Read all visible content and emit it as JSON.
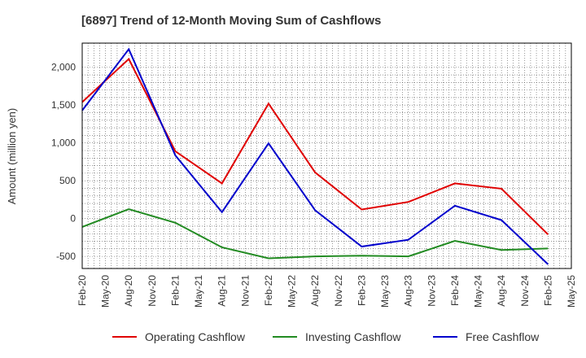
{
  "chart_data": {
    "type": "line",
    "title": "[6897]  Trend of 12-Month Moving Sum of Cashflows",
    "ylabel": "Amount (million yen)",
    "xlabel": "",
    "x": [
      "Feb-20",
      "May-20",
      "Aug-20",
      "Nov-20",
      "Feb-21",
      "May-21",
      "Aug-21",
      "Nov-21",
      "Feb-22",
      "May-22",
      "Aug-22",
      "Nov-22",
      "Feb-23",
      "May-23",
      "Aug-23",
      "Nov-23",
      "Feb-24",
      "May-24",
      "Aug-24",
      "Nov-24",
      "Feb-25",
      "May-25"
    ],
    "ylim": [
      -660,
      2320
    ],
    "yticks": [
      -500,
      0,
      500,
      1000,
      1500,
      2000
    ],
    "ytick_labels": [
      "-500",
      "0",
      "500",
      "1,000",
      "1,500",
      "2,000"
    ],
    "grid": true,
    "legend_position": "bottom",
    "series": [
      {
        "name": "Operating Cashflow",
        "color": "#e00000",
        "points": [
          [
            "Feb-20",
            1540
          ],
          [
            "Aug-20",
            2110
          ],
          [
            "Feb-21",
            890
          ],
          [
            "Aug-21",
            465
          ],
          [
            "Feb-22",
            1520
          ],
          [
            "Aug-22",
            610
          ],
          [
            "Feb-23",
            120
          ],
          [
            "Aug-23",
            220
          ],
          [
            "Feb-24",
            465
          ],
          [
            "Aug-24",
            395
          ],
          [
            "Feb-25",
            -210
          ]
        ]
      },
      {
        "name": "Investing Cashflow",
        "color": "#228b22",
        "points": [
          [
            "Feb-20",
            -110
          ],
          [
            "Aug-20",
            125
          ],
          [
            "Feb-21",
            -55
          ],
          [
            "Aug-21",
            -380
          ],
          [
            "Feb-22",
            -525
          ],
          [
            "Aug-22",
            -500
          ],
          [
            "Feb-23",
            -490
          ],
          [
            "Aug-23",
            -500
          ],
          [
            "Feb-24",
            -295
          ],
          [
            "Aug-24",
            -415
          ],
          [
            "Feb-25",
            -395
          ]
        ]
      },
      {
        "name": "Free Cashflow",
        "color": "#0000cc",
        "points": [
          [
            "Feb-20",
            1430
          ],
          [
            "Aug-20",
            2240
          ],
          [
            "Feb-21",
            835
          ],
          [
            "Aug-21",
            85
          ],
          [
            "Feb-22",
            995
          ],
          [
            "Aug-22",
            110
          ],
          [
            "Feb-23",
            -370
          ],
          [
            "Aug-23",
            -280
          ],
          [
            "Feb-24",
            170
          ],
          [
            "Aug-24",
            -20
          ],
          [
            "Feb-25",
            -605
          ]
        ]
      }
    ]
  }
}
